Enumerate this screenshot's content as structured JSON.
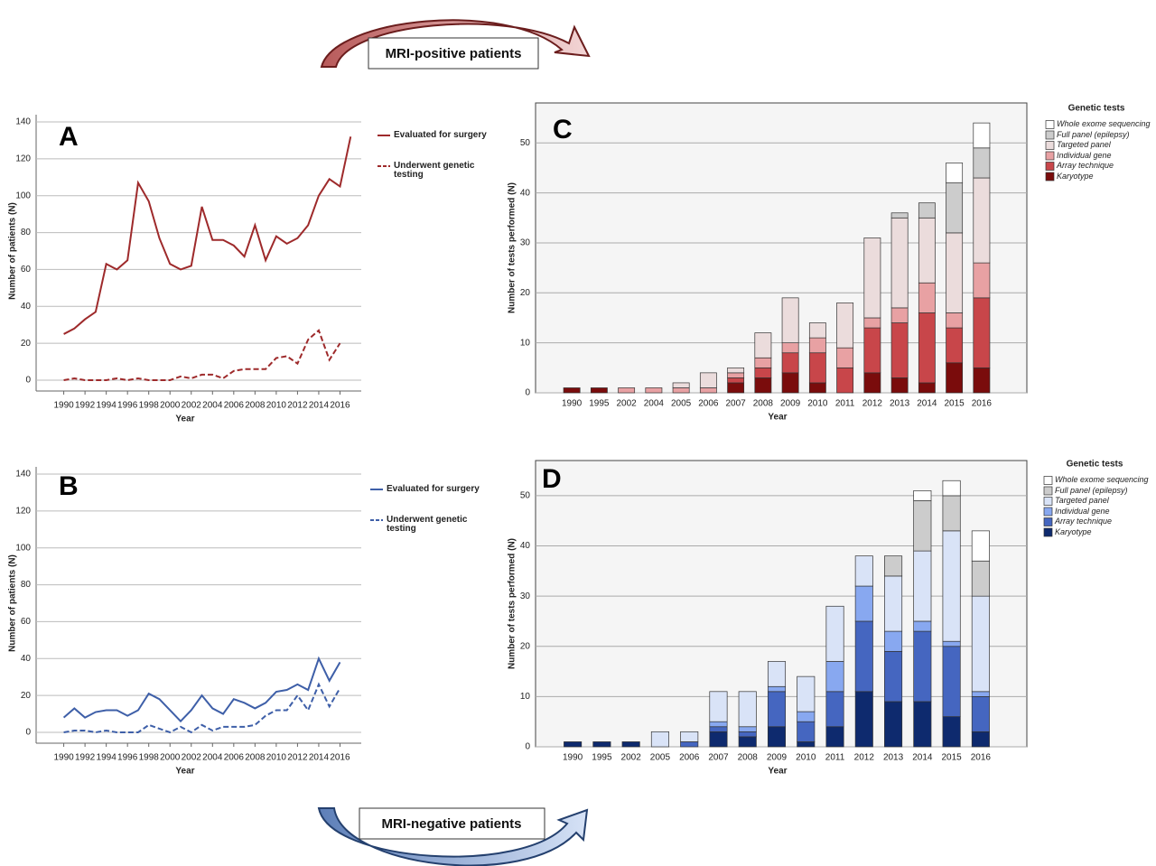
{
  "banners": [
    "MRI-positive patients",
    "MRI-negative patients"
  ],
  "chart_data": [
    {
      "type": "line",
      "panel": "A",
      "x_label": "Year",
      "y_label": "Number of patients (N)",
      "x": [
        1990,
        1991,
        1992,
        1993,
        1994,
        1995,
        1996,
        1997,
        1998,
        1999,
        2000,
        2001,
        2002,
        2003,
        2004,
        2005,
        2006,
        2007,
        2008,
        2009,
        2010,
        2011,
        2012,
        2013,
        2014,
        2015,
        2016,
        2017
      ],
      "series": [
        {
          "name": "Evaluated for surgery",
          "color": "#9e2a2b",
          "linestyle": "solid",
          "values": [
            25,
            28,
            33,
            37,
            63,
            60,
            65,
            107,
            97,
            77,
            63,
            60,
            62,
            94,
            76,
            76,
            73,
            67,
            84,
            65,
            78,
            74,
            77,
            84,
            100,
            109,
            105,
            132
          ]
        },
        {
          "name": "Underwent genetic testing",
          "color": "#9e2a2b",
          "linestyle": "dashed",
          "values": [
            0,
            1,
            0,
            0,
            0,
            1,
            0,
            1,
            0,
            0,
            0,
            2,
            1,
            3,
            3,
            1,
            5,
            6,
            6,
            6,
            12,
            13,
            9,
            22,
            27,
            11,
            20,
            null
          ]
        }
      ],
      "xlim": [
        1987.4,
        2018
      ],
      "xticks": [
        1990,
        1992,
        1994,
        1996,
        1998,
        2000,
        2002,
        2004,
        2006,
        2008,
        2010,
        2012,
        2014,
        2016
      ],
      "ylim": [
        0,
        140
      ],
      "yticks": [
        0,
        20,
        40,
        60,
        80,
        100,
        120,
        140
      ],
      "grid": true
    },
    {
      "type": "line",
      "panel": "B",
      "x_label": "Year",
      "y_label": "Number of patients (N)",
      "x": [
        1990,
        1991,
        1992,
        1993,
        1994,
        1995,
        1996,
        1997,
        1998,
        1999,
        2000,
        2001,
        2002,
        2003,
        2004,
        2005,
        2006,
        2007,
        2008,
        2009,
        2010,
        2011,
        2012,
        2013,
        2014,
        2015,
        2016
      ],
      "series": [
        {
          "name": "Evaluated for surgery",
          "color": "#3e5fa8",
          "linestyle": "solid",
          "values": [
            8,
            13,
            8,
            11,
            12,
            12,
            9,
            12,
            21,
            18,
            12,
            6,
            12,
            20,
            13,
            10,
            18,
            16,
            13,
            16,
            22,
            23,
            26,
            23,
            40,
            28,
            38
          ]
        },
        {
          "name": "Underwent genetic testing",
          "color": "#3e5fa8",
          "linestyle": "dashed",
          "values": [
            0,
            1,
            1,
            0,
            1,
            0,
            0,
            0,
            4,
            2,
            0,
            3,
            0,
            4,
            1,
            3,
            3,
            3,
            4,
            9,
            12,
            12,
            20,
            12,
            26,
            14,
            24
          ]
        }
      ],
      "xlim": [
        1987.4,
        2018
      ],
      "xticks": [
        1990,
        1992,
        1994,
        1996,
        1998,
        2000,
        2002,
        2004,
        2006,
        2008,
        2010,
        2012,
        2014,
        2016
      ],
      "ylim": [
        0,
        140
      ],
      "yticks": [
        0,
        20,
        40,
        60,
        80,
        100,
        120,
        140
      ],
      "grid": true
    },
    {
      "type": "stacked_bar",
      "panel": "C",
      "x_label": "Year",
      "y_label": "Number of tests performed (N)",
      "legend_title": "Genetic tests",
      "categories": [
        "1990",
        "1995",
        "2002",
        "2004",
        "2005",
        "2006",
        "2007",
        "2008",
        "2009",
        "2010",
        "2011",
        "2012",
        "2013",
        "2014",
        "2015",
        "2016"
      ],
      "series": [
        {
          "name": "Karyotype",
          "color": "#7a0c0c",
          "values": [
            1,
            1,
            0,
            0,
            0,
            0,
            2,
            3,
            4,
            2,
            0,
            4,
            3,
            2,
            6,
            5
          ]
        },
        {
          "name": "Array technique",
          "color": "#c8464a",
          "values": [
            0,
            0,
            0,
            0,
            0,
            0,
            1,
            2,
            4,
            6,
            5,
            9,
            11,
            14,
            7,
            14
          ]
        },
        {
          "name": "Individual gene",
          "color": "#e8a1a3",
          "values": [
            0,
            0,
            1,
            1,
            1,
            1,
            1,
            2,
            2,
            3,
            4,
            2,
            3,
            6,
            3,
            7
          ]
        },
        {
          "name": "Targeted panel",
          "color": "#ebdcdc",
          "values": [
            0,
            0,
            0,
            0,
            1,
            3,
            1,
            5,
            9,
            3,
            9,
            16,
            18,
            13,
            16,
            17
          ]
        },
        {
          "name": "Full panel (epilepsy)",
          "color": "#cccccc",
          "values": [
            0,
            0,
            0,
            0,
            0,
            0,
            0,
            0,
            0,
            0,
            0,
            0,
            1,
            3,
            10,
            6
          ]
        },
        {
          "name": "Whole exome sequencing",
          "color": "#ffffff",
          "values": [
            0,
            0,
            0,
            0,
            0,
            0,
            0,
            0,
            0,
            0,
            0,
            0,
            0,
            0,
            4,
            5
          ]
        }
      ],
      "ylim": [
        0,
        58
      ],
      "yticks": [
        0,
        10,
        20,
        30,
        40,
        50
      ],
      "grid": true
    },
    {
      "type": "stacked_bar",
      "panel": "D",
      "x_label": "Year",
      "y_label": "Number of tests performed (N)",
      "legend_title": "Genetic tests",
      "categories": [
        "1990",
        "1995",
        "2002",
        "2005",
        "2006",
        "2007",
        "2008",
        "2009",
        "2010",
        "2011",
        "2012",
        "2013",
        "2014",
        "2015",
        "2016"
      ],
      "series": [
        {
          "name": "Karyotype",
          "color": "#0e2a6e",
          "values": [
            1,
            1,
            1,
            0,
            0,
            3,
            2,
            4,
            1,
            4,
            11,
            9,
            9,
            6,
            3
          ]
        },
        {
          "name": "Array technique",
          "color": "#4566c0",
          "values": [
            0,
            0,
            0,
            0,
            1,
            1,
            1,
            7,
            4,
            7,
            14,
            10,
            14,
            14,
            7
          ]
        },
        {
          "name": "Individual gene",
          "color": "#88a8f0",
          "values": [
            0,
            0,
            0,
            0,
            0,
            1,
            1,
            1,
            2,
            6,
            7,
            4,
            2,
            1,
            1
          ]
        },
        {
          "name": "Targeted panel",
          "color": "#d9e3f7",
          "values": [
            0,
            0,
            0,
            3,
            2,
            6,
            7,
            5,
            7,
            11,
            6,
            11,
            14,
            22,
            19
          ]
        },
        {
          "name": "Full panel (epilepsy)",
          "color": "#cccccc",
          "values": [
            0,
            0,
            0,
            0,
            0,
            0,
            0,
            0,
            0,
            0,
            0,
            4,
            10,
            7,
            7
          ]
        },
        {
          "name": "Whole exome sequencing",
          "color": "#ffffff",
          "values": [
            0,
            0,
            0,
            0,
            0,
            0,
            0,
            0,
            0,
            0,
            0,
            0,
            2,
            3,
            6
          ]
        }
      ],
      "ylim": [
        0,
        57
      ],
      "yticks": [
        0,
        10,
        20,
        30,
        40,
        50
      ],
      "grid": true
    }
  ]
}
